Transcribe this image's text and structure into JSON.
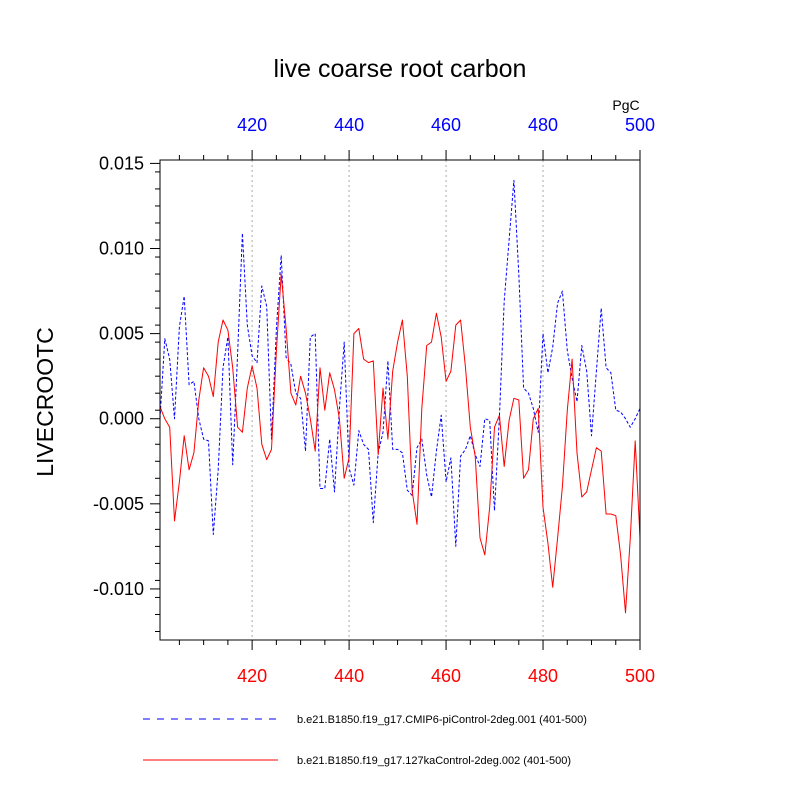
{
  "chart_data": {
    "type": "line",
    "title": "live coarse root carbon",
    "ylabel": "LIVECROOTC",
    "units": "PgC",
    "xlim": [
      401,
      500
    ],
    "ylim": [
      -0.013,
      0.0152
    ],
    "yticks": [
      0.015,
      0.01,
      0.005,
      0.0,
      -0.005,
      -0.01
    ],
    "ytick_labels": [
      "0.015",
      "0.010",
      "0.005",
      "0.000",
      "-0.005",
      "-0.010"
    ],
    "xticks": [
      420,
      440,
      460,
      480,
      500
    ],
    "xtick_labels_top": [
      "420",
      "440",
      "460",
      "480",
      "500"
    ],
    "xtick_labels_bottom": [
      "420",
      "440",
      "460",
      "480",
      "500"
    ],
    "colors": {
      "top_axis": "#0000ff",
      "bottom_axis": "#ff0000",
      "grid": "#aaaaaa"
    },
    "series": [
      {
        "name": "b.e21.B1850.f19_g17.CMIP6-piControl-2deg.001 (401-500)",
        "color": "#0000ff",
        "dash": "dashed",
        "x": [
          401,
          402,
          403,
          404,
          405,
          406,
          407,
          408,
          409,
          410,
          411,
          412,
          413,
          414,
          415,
          416,
          417,
          418,
          419,
          420,
          421,
          422,
          423,
          424,
          425,
          426,
          427,
          428,
          429,
          430,
          431,
          432,
          433,
          434,
          435,
          436,
          437,
          438,
          439,
          440,
          441,
          442,
          443,
          444,
          445,
          446,
          447,
          448,
          449,
          450,
          451,
          452,
          453,
          454,
          455,
          456,
          457,
          458,
          459,
          460,
          461,
          462,
          463,
          464,
          465,
          466,
          467,
          468,
          469,
          470,
          471,
          472,
          473,
          474,
          475,
          476,
          477,
          478,
          479,
          480,
          481,
          482,
          483,
          484,
          485,
          486,
          487,
          488,
          489,
          490,
          491,
          492,
          493,
          494,
          495,
          496,
          497,
          498,
          499,
          500
        ],
        "values": [
          0.0,
          0.0047,
          0.0035,
          0.0,
          0.0054,
          0.0072,
          0.002,
          0.0022,
          0.0,
          -0.0012,
          -0.0013,
          -0.0068,
          -0.003,
          0.003,
          0.0048,
          -0.0027,
          0.0038,
          0.0109,
          0.0055,
          0.0037,
          0.0033,
          0.0078,
          0.0066,
          -0.0012,
          0.0053,
          0.0096,
          0.0036,
          0.0032,
          0.0015,
          0.0012,
          -0.0019,
          0.0048,
          0.005,
          -0.0041,
          -0.0041,
          -0.0012,
          -0.0043,
          0.0006,
          0.0045,
          -0.0029,
          -0.0039,
          -0.0007,
          -0.0015,
          -0.0018,
          -0.0061,
          -0.002,
          -0.0008,
          0.0034,
          -0.0018,
          -0.0018,
          -0.002,
          -0.0042,
          -0.0045,
          -0.0017,
          -0.0012,
          -0.0033,
          -0.0046,
          -0.0019,
          0.0002,
          -0.0037,
          -0.0023,
          -0.0075,
          -0.0022,
          -0.0018,
          -0.001,
          -0.0021,
          -0.0028,
          0.0,
          -0.0001,
          -0.0054,
          0.0001,
          0.0069,
          0.0105,
          0.014,
          0.0085,
          0.0018,
          0.0015,
          0.0006,
          -0.0008,
          0.005,
          0.0027,
          0.0042,
          0.0068,
          0.0075,
          0.004,
          0.0024,
          0.001,
          0.0043,
          0.0028,
          -0.001,
          0.0028,
          0.0065,
          0.003,
          0.0027,
          0.0005,
          0.0004,
          0.0,
          -0.0005,
          0.0,
          0.0006
        ]
      },
      {
        "name": "b.e21.B1850.f19_g17.127kaControl-2deg.002 (401-500)",
        "color": "#ff0000",
        "dash": "solid",
        "x": [
          401,
          402,
          403,
          404,
          405,
          406,
          407,
          408,
          409,
          410,
          411,
          412,
          413,
          414,
          415,
          416,
          417,
          418,
          419,
          420,
          421,
          422,
          423,
          424,
          425,
          426,
          427,
          428,
          429,
          430,
          431,
          432,
          433,
          434,
          435,
          436,
          437,
          438,
          439,
          440,
          441,
          442,
          443,
          444,
          445,
          446,
          447,
          448,
          449,
          450,
          451,
          452,
          453,
          454,
          455,
          456,
          457,
          458,
          459,
          460,
          461,
          462,
          463,
          464,
          465,
          466,
          467,
          468,
          469,
          470,
          471,
          472,
          473,
          474,
          475,
          476,
          477,
          478,
          479,
          480,
          481,
          482,
          483,
          484,
          485,
          486,
          487,
          488,
          489,
          490,
          491,
          492,
          493,
          494,
          495,
          496,
          497,
          498,
          499,
          500
        ],
        "values": [
          0.0007,
          0.0,
          -0.0005,
          -0.006,
          -0.0037,
          -0.001,
          -0.003,
          -0.002,
          0.0011,
          0.003,
          0.0025,
          0.0013,
          0.0045,
          0.0058,
          0.0052,
          0.003,
          -0.0005,
          -0.0008,
          0.0018,
          0.0031,
          0.0018,
          -0.0015,
          -0.0024,
          -0.0018,
          0.004,
          0.0085,
          0.0053,
          0.0015,
          0.0008,
          0.0025,
          0.0015,
          0.0,
          -0.0019,
          0.003,
          0.0005,
          0.0027,
          0.0017,
          0.0,
          -0.0035,
          -0.0023,
          0.005,
          0.0053,
          0.0035,
          0.0033,
          0.0034,
          -0.0021,
          0.0018,
          -0.0012,
          0.0028,
          0.0045,
          0.0058,
          0.0025,
          -0.0042,
          -0.0062,
          0.0006,
          0.0043,
          0.0045,
          0.0062,
          0.0048,
          0.0022,
          0.0028,
          0.0055,
          0.0058,
          0.003,
          -0.0005,
          -0.0022,
          -0.007,
          -0.008,
          -0.0052,
          -0.0005,
          0.0002,
          -0.0028,
          -0.0001,
          0.0012,
          0.0011,
          -0.0035,
          -0.003,
          0.0,
          0.0006,
          -0.0052,
          -0.0073,
          -0.0099,
          -0.007,
          -0.004,
          0.0005,
          0.0035,
          -0.002,
          -0.0046,
          -0.0043,
          -0.003,
          -0.0017,
          -0.0019,
          -0.0056,
          -0.0056,
          -0.0057,
          -0.008,
          -0.0114,
          -0.007,
          -0.0013,
          -0.007
        ]
      }
    ]
  }
}
